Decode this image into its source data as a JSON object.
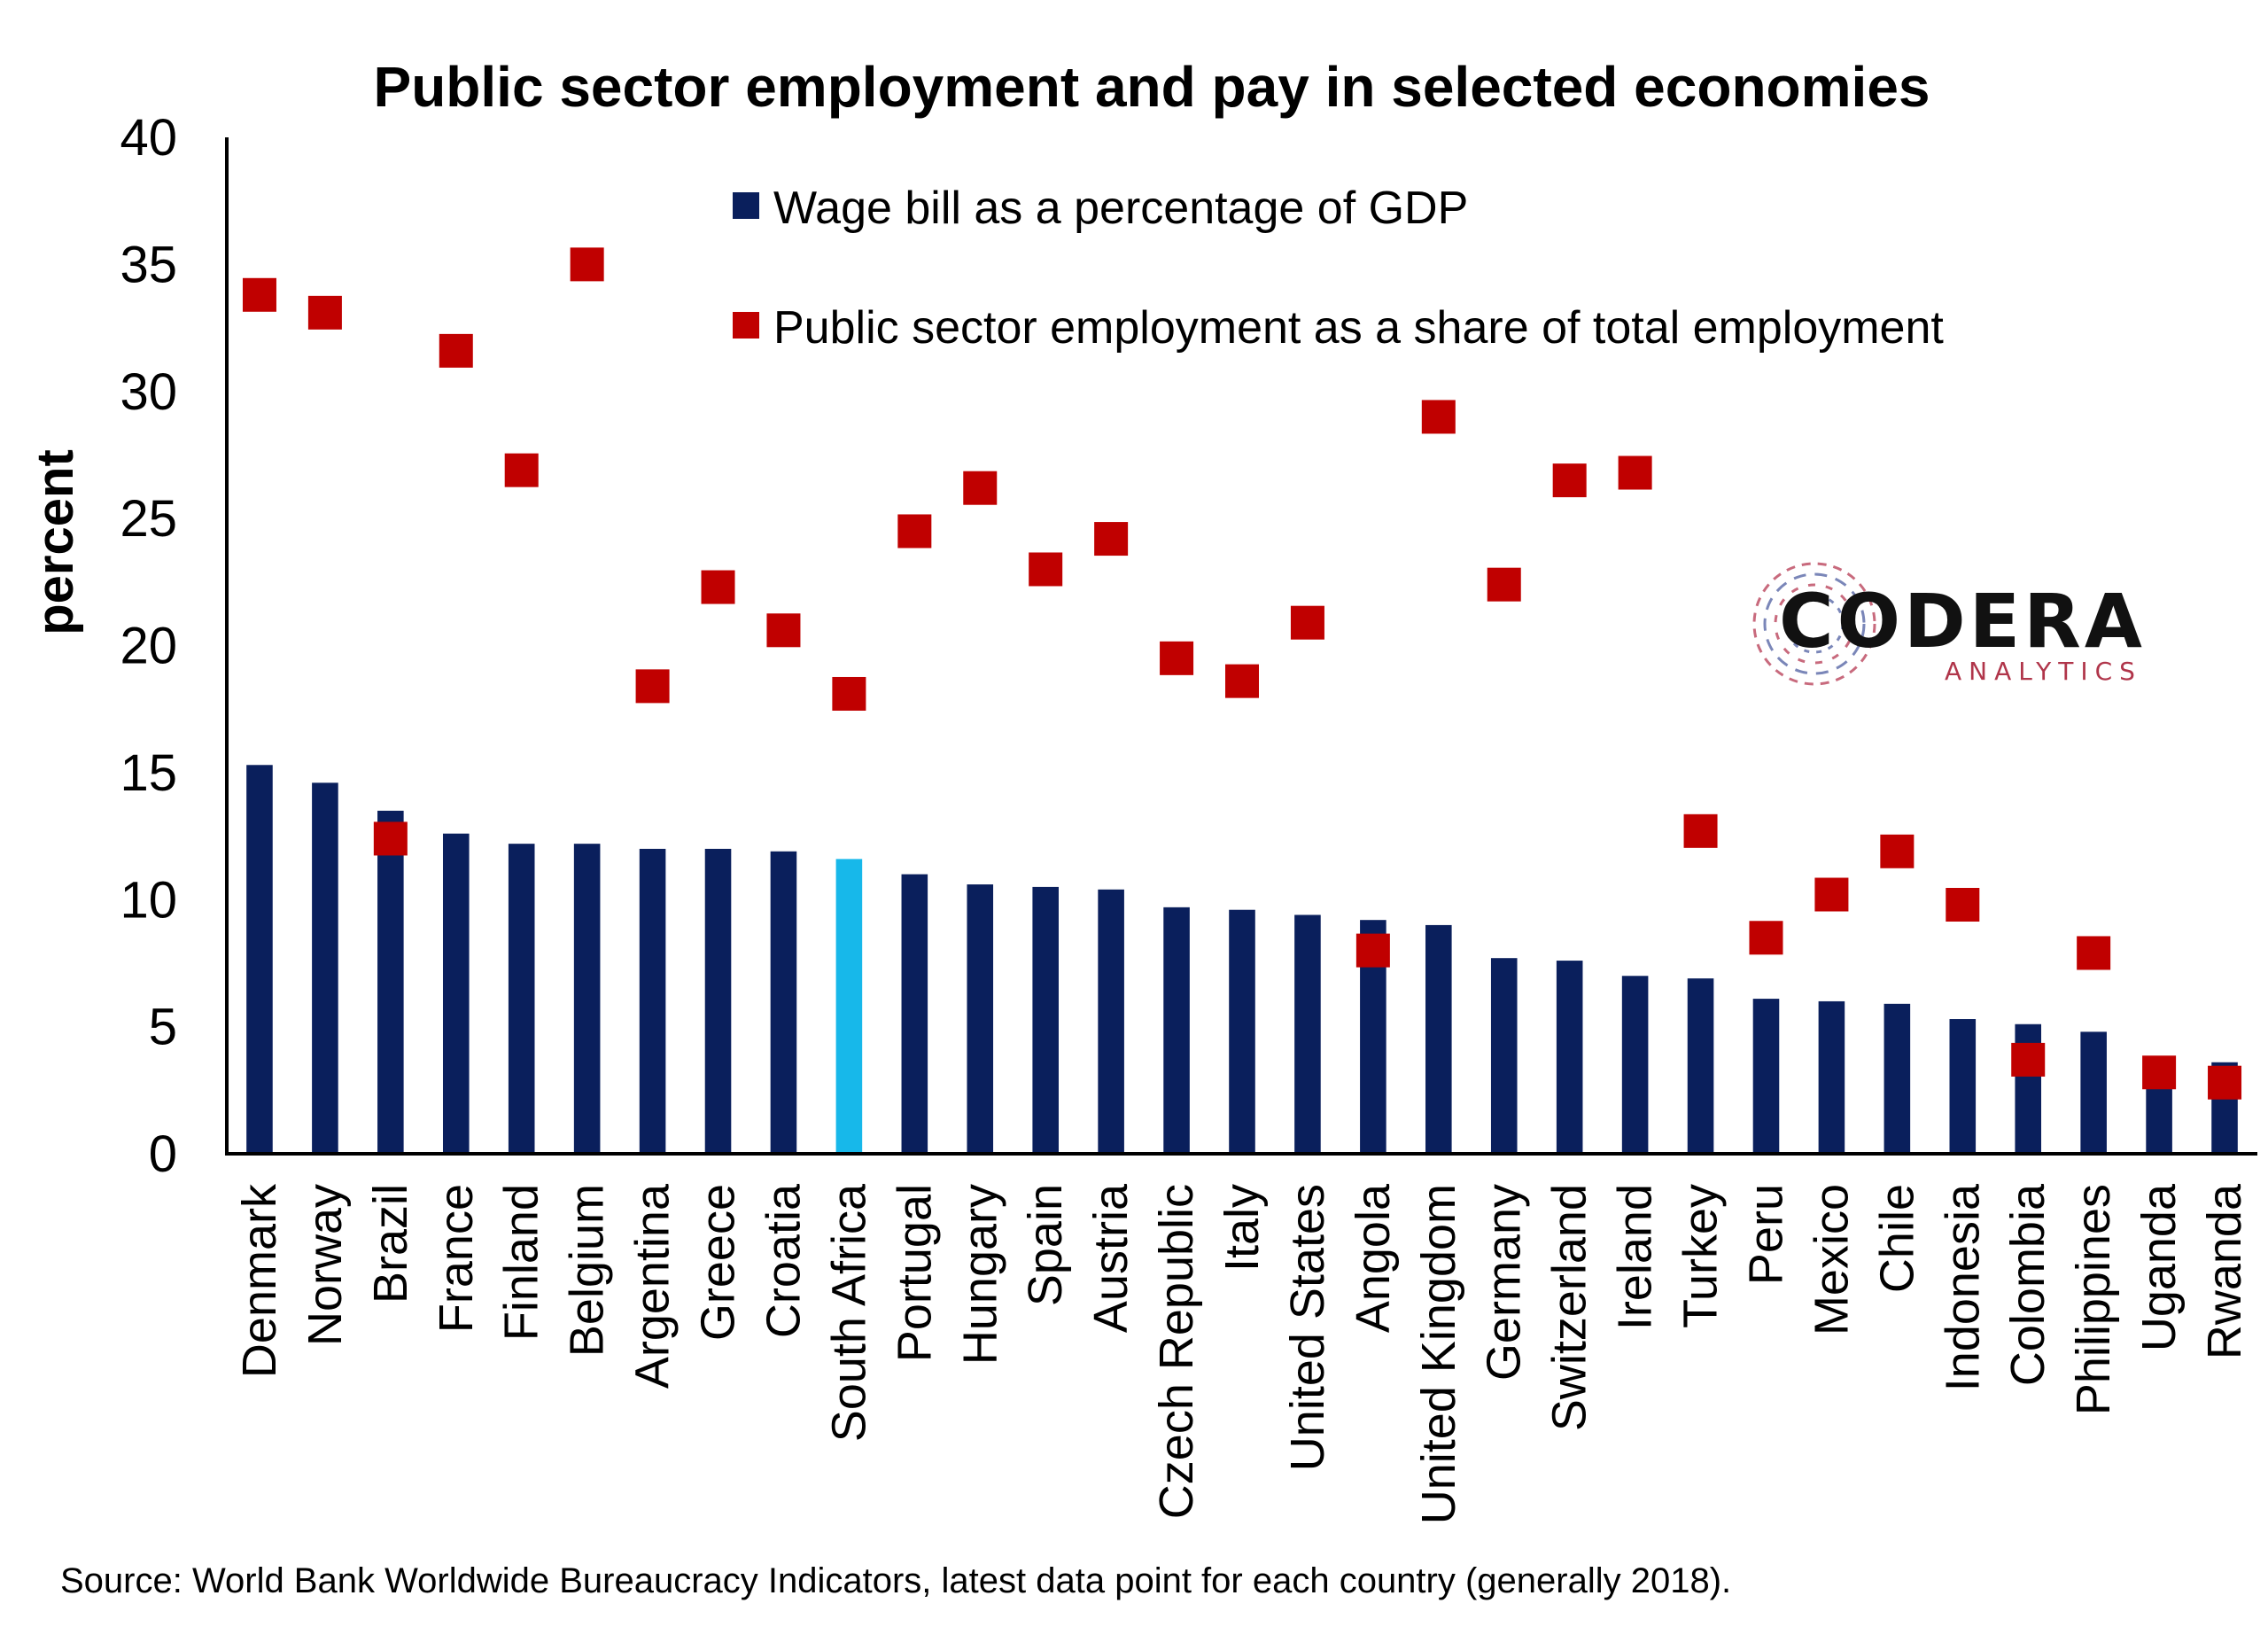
{
  "colors": {
    "bar": "#0a1f5c",
    "bar_highlight": "#17b8ea",
    "marker": "#c00000",
    "axis": "#000000",
    "logo_sub": "#b0354a"
  },
  "chart_data": {
    "type": "bar",
    "title": "Public sector employment and pay in selected economies",
    "ylabel": "percent",
    "xlabel": "",
    "ylim": [
      0,
      40
    ],
    "yticks": [
      "0",
      "5",
      "10",
      "15",
      "20",
      "25",
      "30",
      "35",
      "40"
    ],
    "legend_position": "top-center",
    "highlight_category": "South Africa",
    "categories": [
      "Denmark",
      "Norway",
      "Brazil",
      "France",
      "Finland",
      "Belgium",
      "Argentina",
      "Greece",
      "Croatia",
      "South Africa",
      "Portugal",
      "Hungary",
      "Spain",
      "Austria",
      "Czech Republic",
      "Italy",
      "United States",
      "Angola",
      "United Kingdom",
      "Germany",
      "Switzerland",
      "Ireland",
      "Turkey",
      "Peru",
      "Mexico",
      "Chile",
      "Indonesia",
      "Colombia",
      "Philippines",
      "Uganda",
      "Rwanda"
    ],
    "series": [
      {
        "name": "Wage bill as a percentage of GDP",
        "type": "bar",
        "values": [
          15.3,
          14.6,
          13.5,
          12.6,
          12.2,
          12.2,
          12.0,
          12.0,
          11.9,
          11.6,
          11.0,
          10.6,
          10.5,
          10.4,
          9.7,
          9.6,
          9.4,
          9.2,
          9.0,
          7.7,
          7.6,
          7.0,
          6.9,
          6.1,
          6.0,
          5.9,
          5.3,
          5.1,
          4.8,
          3.0,
          3.6
        ]
      },
      {
        "name": "Public sector employment as a share of total employment",
        "type": "scatter",
        "values": [
          33.8,
          33.1,
          12.4,
          31.6,
          26.9,
          35.0,
          18.4,
          22.3,
          20.6,
          18.1,
          24.5,
          26.2,
          23.0,
          24.2,
          19.5,
          18.6,
          20.9,
          8.0,
          29.0,
          22.4,
          26.5,
          26.8,
          12.7,
          8.5,
          10.2,
          11.9,
          9.8,
          3.7,
          7.9,
          3.2,
          2.8
        ]
      }
    ]
  },
  "logo": {
    "word": "CODERA",
    "sub": "ANALYTICS"
  },
  "source": "Source: World Bank Worldwide Bureaucracy Indicators, latest data point for each country (generally 2018)."
}
